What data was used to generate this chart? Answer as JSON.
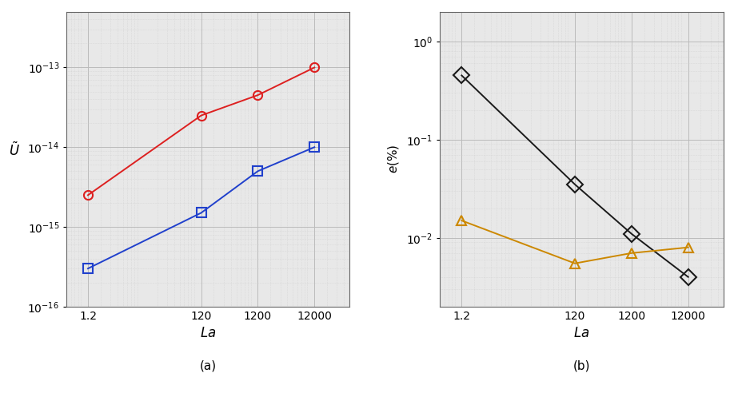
{
  "x": [
    1.2,
    120,
    1200,
    12000
  ],
  "red_y": [
    2.5e-15,
    2.5e-14,
    4.5e-14,
    1e-13
  ],
  "blue_y": [
    3e-16,
    1.5e-15,
    5e-15,
    1e-14
  ],
  "black_y": [
    0.45,
    0.035,
    0.011,
    0.004
  ],
  "orange_y": [
    0.015,
    0.0055,
    0.007,
    0.008
  ],
  "red_color": "#dd2020",
  "blue_color": "#2040cc",
  "black_color": "#1a1a1a",
  "orange_color": "#cc8800",
  "bg_color": "#e8e8e8",
  "grid_major_color": "#bbbbbb",
  "grid_minor_color": "#cccccc",
  "label_a": "(a)",
  "label_b": "(b)"
}
